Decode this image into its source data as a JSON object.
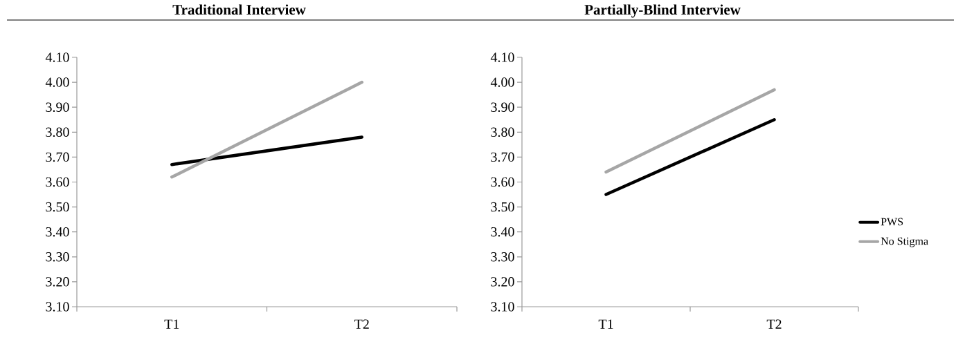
{
  "chart_data": [
    {
      "type": "line",
      "title": "Traditional Interview",
      "categories": [
        "T1",
        "T2"
      ],
      "marker": "none",
      "series": [
        {
          "color": "#000000",
          "values": [
            3.67,
            3.78
          ]
        },
        {
          "color": "#a6a6a6",
          "values": [
            3.62,
            4.0
          ]
        }
      ],
      "ylim": [
        3.1,
        4.1
      ],
      "yticks": [
        {
          "value": 3.1,
          "label": "3.10"
        },
        {
          "value": 3.2,
          "label": "3.20"
        },
        {
          "value": 3.3,
          "label": "3.30"
        },
        {
          "value": 3.4,
          "label": "3.40"
        },
        {
          "value": 3.5,
          "label": "3.50"
        },
        {
          "value": 3.6,
          "label": "3.60"
        },
        {
          "value": 3.7,
          "label": "3.70"
        },
        {
          "value": 3.8,
          "label": "3.80"
        },
        {
          "value": 3.9,
          "label": "3.90"
        },
        {
          "value": 4.0,
          "label": "4.00"
        },
        {
          "value": 4.1,
          "label": "4.10"
        }
      ]
    },
    {
      "type": "line",
      "title": "Partially-Blind Interview",
      "categories": [
        "T1",
        "T2"
      ],
      "marker": "none",
      "legend": "right",
      "series": [
        {
          "name": "PWS",
          "color": "#000000",
          "values": [
            3.55,
            3.85
          ]
        },
        {
          "name": "No Stigma",
          "color": "#a6a6a6",
          "values": [
            3.64,
            3.97
          ]
        }
      ],
      "ylim": [
        3.1,
        4.1
      ],
      "yticks": [
        {
          "value": 3.1,
          "label": "3.10"
        },
        {
          "value": 3.2,
          "label": "3.20"
        },
        {
          "value": 3.3,
          "label": "3.30"
        },
        {
          "value": 3.4,
          "label": "3.40"
        },
        {
          "value": 3.5,
          "label": "3.50"
        },
        {
          "value": 3.6,
          "label": "3.60"
        },
        {
          "value": 3.7,
          "label": "3.70"
        },
        {
          "value": 3.8,
          "label": "3.80"
        },
        {
          "value": 3.9,
          "label": "3.90"
        },
        {
          "value": 4.0,
          "label": "4.00"
        },
        {
          "value": 4.1,
          "label": "4.10"
        }
      ]
    }
  ]
}
